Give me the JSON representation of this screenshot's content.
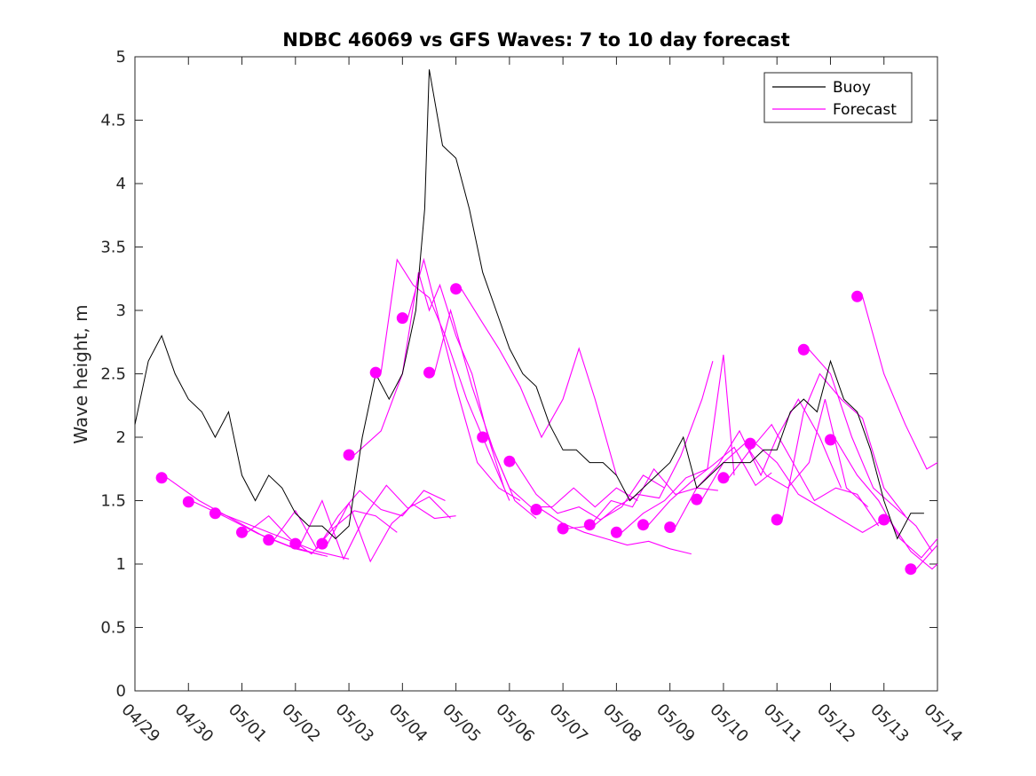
{
  "chart_data": {
    "type": "line",
    "title": "NDBC 46069 vs GFS Waves: 7 to 10 day forecast",
    "xlabel": "",
    "ylabel": "Wave height, m",
    "xlim": [
      "04/29",
      "05/14"
    ],
    "ylim": [
      0,
      5
    ],
    "x_tick_labels": [
      "04/29",
      "04/30",
      "05/01",
      "05/02",
      "05/03",
      "05/04",
      "05/05",
      "05/06",
      "05/07",
      "05/08",
      "05/09",
      "05/10",
      "05/11",
      "05/12",
      "05/13",
      "05/14"
    ],
    "y_tick_labels": [
      "0",
      "0.5",
      "1",
      "1.5",
      "2",
      "2.5",
      "3",
      "3.5",
      "4",
      "4.5",
      "5"
    ],
    "grid": false,
    "legend": {
      "position": "top-right",
      "entries": [
        "Buoy",
        "Forecast"
      ]
    },
    "colors": {
      "buoy": "#000000",
      "forecast": "#ff00ff"
    },
    "series": [
      {
        "name": "Buoy",
        "x_days_note": "",
        "x": [
          "04/29 00:00",
          "04/29 06:00",
          "04/29 12:00",
          "04/29 18:00",
          "04/30 00:00",
          "04/30 06:00",
          "04/30 12:00",
          "04/30 18:00",
          "05/01 00:00",
          "05/01 06:00",
          "05/01 12:00",
          "05/01 18:00",
          "05/02 00:00",
          "05/02 06:00",
          "05/02 12:00",
          "05/02 18:00",
          "05/03 00:00",
          "05/03 06:00",
          "05/03 12:00",
          "05/03 18:00",
          "05/04 00:00",
          "05/04 06:00",
          "05/04 10:00",
          "05/04 12:00",
          "05/04 18:00",
          "05/05 00:00",
          "05/05 06:00",
          "05/05 12:00",
          "05/05 18:00",
          "05/06 00:00",
          "05/06 06:00",
          "05/06 12:00",
          "05/06 18:00",
          "05/07 00:00",
          "05/07 06:00",
          "05/07 12:00",
          "05/07 18:00",
          "05/08 00:00",
          "05/08 06:00",
          "05/08 12:00",
          "05/08 18:00",
          "05/09 00:00",
          "05/09 06:00",
          "05/09 12:00",
          "05/09 18:00",
          "05/10 00:00",
          "05/10 06:00",
          "05/10 12:00",
          "05/10 18:00",
          "05/11 00:00",
          "05/11 06:00",
          "05/11 12:00",
          "05/11 18:00",
          "05/12 00:00",
          "05/12 06:00",
          "05/12 12:00",
          "05/12 18:00",
          "05/13 00:00",
          "05/13 06:00",
          "05/13 12:00",
          "05/13 18:00"
        ],
        "values": [
          2.1,
          2.6,
          2.8,
          2.5,
          2.3,
          2.2,
          2.0,
          2.2,
          1.7,
          1.5,
          1.7,
          1.6,
          1.4,
          1.3,
          1.3,
          1.2,
          1.3,
          2.0,
          2.5,
          2.3,
          2.5,
          3.0,
          3.8,
          4.9,
          4.3,
          4.2,
          3.8,
          3.3,
          3.0,
          2.7,
          2.5,
          2.4,
          2.1,
          1.9,
          1.9,
          1.8,
          1.8,
          1.7,
          1.5,
          1.6,
          1.7,
          1.8,
          2.0,
          1.6,
          1.7,
          1.8,
          1.8,
          1.8,
          1.9,
          1.9,
          2.2,
          2.3,
          2.2,
          2.6,
          2.3,
          2.2,
          1.9,
          1.5,
          1.2,
          1.4,
          1.4
        ]
      },
      {
        "name": "Forecast",
        "points": [
          {
            "x": "04/29 12:00",
            "y": 1.68
          },
          {
            "x": "04/30 00:00",
            "y": 1.49
          },
          {
            "x": "04/30 12:00",
            "y": 1.4
          },
          {
            "x": "05/01 00:00",
            "y": 1.25
          },
          {
            "x": "05/01 12:00",
            "y": 1.19
          },
          {
            "x": "05/02 00:00",
            "y": 1.16
          },
          {
            "x": "05/02 12:00",
            "y": 1.16
          },
          {
            "x": "05/03 00:00",
            "y": 1.86
          },
          {
            "x": "05/03 12:00",
            "y": 2.51
          },
          {
            "x": "05/04 00:00",
            "y": 2.94
          },
          {
            "x": "05/04 12:00",
            "y": 2.51
          },
          {
            "x": "05/05 00:00",
            "y": 3.17
          },
          {
            "x": "05/05 12:00",
            "y": 2.0
          },
          {
            "x": "05/06 00:00",
            "y": 1.81
          },
          {
            "x": "05/06 12:00",
            "y": 1.43
          },
          {
            "x": "05/07 00:00",
            "y": 1.28
          },
          {
            "x": "05/07 12:00",
            "y": 1.31
          },
          {
            "x": "05/08 00:00",
            "y": 1.25
          },
          {
            "x": "05/08 12:00",
            "y": 1.31
          },
          {
            "x": "05/09 00:00",
            "y": 1.29
          },
          {
            "x": "05/09 12:00",
            "y": 1.51
          },
          {
            "x": "05/10 00:00",
            "y": 1.68
          },
          {
            "x": "05/10 12:00",
            "y": 1.95
          },
          {
            "x": "05/11 00:00",
            "y": 1.35
          },
          {
            "x": "05/11 12:00",
            "y": 2.69
          },
          {
            "x": "05/12 00:00",
            "y": 1.98
          },
          {
            "x": "05/12 12:00",
            "y": 3.11
          },
          {
            "x": "05/13 00:00",
            "y": 1.35
          },
          {
            "x": "05/13 12:00",
            "y": 0.96
          }
        ]
      }
    ],
    "forecast_runs": [
      [
        [
          0.6,
          1.68
        ],
        [
          1.2,
          1.5
        ],
        [
          1.8,
          1.36
        ],
        [
          2.4,
          1.22
        ],
        [
          3.0,
          1.12
        ],
        [
          3.6,
          1.06
        ]
      ],
      [
        [
          1.1,
          1.49
        ],
        [
          1.7,
          1.37
        ],
        [
          2.3,
          1.24
        ],
        [
          2.9,
          1.14
        ],
        [
          3.5,
          1.07
        ]
      ],
      [
        [
          1.6,
          1.4
        ],
        [
          2.2,
          1.3
        ],
        [
          2.8,
          1.2
        ],
        [
          3.4,
          1.1
        ],
        [
          4.0,
          1.04
        ]
      ],
      [
        [
          2.1,
          1.25
        ],
        [
          2.5,
          1.38
        ],
        [
          2.9,
          1.2
        ],
        [
          3.3,
          1.08
        ],
        [
          3.7,
          1.28
        ],
        [
          4.1,
          1.42
        ],
        [
          4.5,
          1.38
        ],
        [
          4.9,
          1.25
        ]
      ],
      [
        [
          2.6,
          1.19
        ],
        [
          3.0,
          1.42
        ],
        [
          3.4,
          1.12
        ],
        [
          3.8,
          1.38
        ],
        [
          4.2,
          1.58
        ],
        [
          4.6,
          1.43
        ],
        [
          5.0,
          1.38
        ],
        [
          5.4,
          1.58
        ],
        [
          5.8,
          1.5
        ]
      ],
      [
        [
          3.1,
          1.16
        ],
        [
          3.5,
          1.5
        ],
        [
          3.9,
          1.04
        ],
        [
          4.3,
          1.38
        ],
        [
          4.7,
          1.62
        ],
        [
          5.1,
          1.44
        ],
        [
          5.5,
          1.53
        ],
        [
          5.9,
          1.36
        ]
      ],
      [
        [
          3.6,
          1.16
        ],
        [
          4.0,
          1.48
        ],
        [
          4.4,
          1.02
        ],
        [
          4.8,
          1.32
        ],
        [
          5.2,
          1.47
        ],
        [
          5.6,
          1.36
        ],
        [
          6.0,
          1.38
        ]
      ],
      [
        [
          4.1,
          1.86
        ],
        [
          4.6,
          2.05
        ],
        [
          5.0,
          2.5
        ],
        [
          5.3,
          3.3
        ],
        [
          5.5,
          3.0
        ],
        [
          5.7,
          3.2
        ],
        [
          6.0,
          2.8
        ],
        [
          6.3,
          2.5
        ],
        [
          6.6,
          2.0
        ],
        [
          6.9,
          1.6
        ]
      ],
      [
        [
          4.6,
          2.51
        ],
        [
          4.9,
          3.4
        ],
        [
          5.2,
          3.2
        ],
        [
          5.5,
          3.1
        ],
        [
          5.8,
          2.8
        ],
        [
          6.2,
          2.3
        ],
        [
          6.6,
          1.9
        ],
        [
          7.0,
          1.5
        ]
      ],
      [
        [
          5.1,
          2.94
        ],
        [
          5.4,
          3.4
        ],
        [
          5.7,
          2.9
        ],
        [
          6.0,
          2.4
        ],
        [
          6.4,
          1.8
        ],
        [
          6.8,
          1.6
        ],
        [
          7.2,
          1.5
        ]
      ],
      [
        [
          5.6,
          2.51
        ],
        [
          5.9,
          3.0
        ],
        [
          6.3,
          2.4
        ],
        [
          6.7,
          1.9
        ],
        [
          7.1,
          1.5
        ],
        [
          7.5,
          1.36
        ]
      ],
      [
        [
          6.1,
          3.17
        ],
        [
          6.5,
          2.9
        ],
        [
          6.8,
          2.7
        ],
        [
          7.2,
          2.4
        ],
        [
          7.6,
          2.0
        ],
        [
          8.0,
          2.3
        ],
        [
          8.3,
          2.7
        ],
        [
          8.6,
          2.3
        ],
        [
          9.0,
          1.7
        ]
      ],
      [
        [
          6.6,
          2.0
        ],
        [
          7.0,
          1.6
        ],
        [
          7.4,
          1.45
        ],
        [
          7.8,
          1.45
        ],
        [
          8.2,
          1.6
        ],
        [
          8.6,
          1.45
        ],
        [
          9.0,
          1.6
        ],
        [
          9.4,
          1.5
        ]
      ],
      [
        [
          7.1,
          1.81
        ],
        [
          7.5,
          1.55
        ],
        [
          7.9,
          1.4
        ],
        [
          8.3,
          1.45
        ],
        [
          8.7,
          1.35
        ],
        [
          9.1,
          1.45
        ],
        [
          9.5,
          1.7
        ],
        [
          9.9,
          1.6
        ]
      ],
      [
        [
          7.6,
          1.43
        ],
        [
          8.0,
          1.32
        ],
        [
          8.4,
          1.25
        ],
        [
          8.8,
          1.2
        ],
        [
          9.2,
          1.15
        ],
        [
          9.6,
          1.18
        ],
        [
          10.0,
          1.12
        ],
        [
          10.4,
          1.08
        ]
      ],
      [
        [
          8.1,
          1.28
        ],
        [
          8.5,
          1.3
        ],
        [
          8.9,
          1.5
        ],
        [
          9.3,
          1.45
        ],
        [
          9.7,
          1.75
        ],
        [
          10.1,
          1.55
        ],
        [
          10.5,
          1.6
        ],
        [
          10.9,
          1.58
        ]
      ],
      [
        [
          8.6,
          1.31
        ],
        [
          9.0,
          1.45
        ],
        [
          9.4,
          1.55
        ],
        [
          9.8,
          1.52
        ],
        [
          10.2,
          1.85
        ],
        [
          10.6,
          2.3
        ],
        [
          10.8,
          2.6
        ]
      ],
      [
        [
          9.1,
          1.25
        ],
        [
          9.5,
          1.4
        ],
        [
          9.9,
          1.5
        ],
        [
          10.3,
          1.68
        ],
        [
          10.7,
          1.75
        ],
        [
          11.0,
          2.65
        ],
        [
          11.2,
          1.7
        ]
      ],
      [
        [
          9.6,
          1.31
        ],
        [
          10.0,
          1.5
        ],
        [
          10.4,
          1.65
        ],
        [
          10.8,
          1.78
        ],
        [
          11.2,
          1.92
        ],
        [
          11.6,
          1.62
        ],
        [
          11.9,
          1.72
        ]
      ],
      [
        [
          10.1,
          1.29
        ],
        [
          10.5,
          1.6
        ],
        [
          10.9,
          1.78
        ],
        [
          11.3,
          2.05
        ],
        [
          11.7,
          1.7
        ],
        [
          12.0,
          2.0
        ],
        [
          12.4,
          2.3
        ],
        [
          12.8,
          2.0
        ],
        [
          13.2,
          1.6
        ]
      ],
      [
        [
          10.6,
          1.51
        ],
        [
          11.0,
          1.8
        ],
        [
          11.4,
          1.95
        ],
        [
          11.8,
          1.7
        ],
        [
          12.2,
          1.6
        ],
        [
          12.6,
          1.8
        ],
        [
          12.9,
          2.3
        ],
        [
          13.3,
          1.6
        ],
        [
          13.7,
          1.45
        ]
      ],
      [
        [
          11.1,
          1.68
        ],
        [
          11.5,
          1.9
        ],
        [
          11.9,
          2.1
        ],
        [
          12.3,
          1.8
        ],
        [
          12.7,
          1.5
        ],
        [
          13.1,
          1.6
        ],
        [
          13.5,
          1.55
        ],
        [
          13.9,
          1.3
        ]
      ],
      [
        [
          11.6,
          1.95
        ],
        [
          12.0,
          1.8
        ],
        [
          12.4,
          1.55
        ],
        [
          12.8,
          1.45
        ],
        [
          13.2,
          1.35
        ],
        [
          13.6,
          1.25
        ],
        [
          14.0,
          1.35
        ]
      ],
      [
        [
          12.1,
          1.35
        ],
        [
          12.5,
          2.2
        ],
        [
          12.8,
          2.5
        ],
        [
          13.2,
          2.3
        ],
        [
          13.6,
          2.15
        ],
        [
          14.0,
          1.6
        ],
        [
          14.4,
          1.38
        ]
      ],
      [
        [
          12.6,
          2.69
        ],
        [
          13.0,
          2.5
        ],
        [
          13.4,
          2.0
        ],
        [
          13.8,
          1.6
        ],
        [
          14.2,
          1.45
        ],
        [
          14.6,
          1.3
        ],
        [
          14.9,
          1.1
        ]
      ],
      [
        [
          13.1,
          1.98
        ],
        [
          13.5,
          1.7
        ],
        [
          13.9,
          1.5
        ],
        [
          14.3,
          1.2
        ],
        [
          14.7,
          1.05
        ],
        [
          15.0,
          1.2
        ]
      ],
      [
        [
          13.6,
          3.11
        ],
        [
          14.0,
          2.5
        ],
        [
          14.4,
          2.1
        ],
        [
          14.8,
          1.75
        ],
        [
          15.0,
          1.8
        ]
      ],
      [
        [
          14.1,
          1.35
        ],
        [
          14.5,
          1.1
        ],
        [
          14.9,
          0.96
        ],
        [
          15.0,
          1.0
        ]
      ],
      [
        [
          14.6,
          0.96
        ],
        [
          15.0,
          1.15
        ]
      ]
    ]
  }
}
